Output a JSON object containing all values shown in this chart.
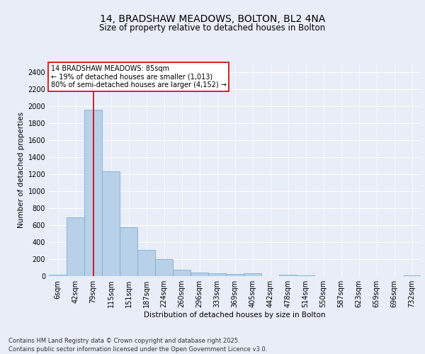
{
  "title_line1": "14, BRADSHAW MEADOWS, BOLTON, BL2 4NA",
  "title_line2": "Size of property relative to detached houses in Bolton",
  "xlabel": "Distribution of detached houses by size in Bolton",
  "ylabel": "Number of detached properties",
  "bar_color": "#b8d0e8",
  "bar_edge_color": "#7aafd4",
  "background_color": "#e8edf8",
  "grid_color": "#ffffff",
  "categories": [
    "6sqm",
    "42sqm",
    "79sqm",
    "115sqm",
    "151sqm",
    "187sqm",
    "224sqm",
    "260sqm",
    "296sqm",
    "333sqm",
    "369sqm",
    "405sqm",
    "442sqm",
    "478sqm",
    "514sqm",
    "550sqm",
    "587sqm",
    "623sqm",
    "659sqm",
    "696sqm",
    "732sqm"
  ],
  "values": [
    15,
    690,
    1960,
    1230,
    575,
    305,
    200,
    75,
    45,
    30,
    25,
    30,
    0,
    15,
    5,
    0,
    0,
    0,
    0,
    0,
    5
  ],
  "vline_x": 2,
  "vline_color": "#cc0000",
  "annotation_text": "14 BRADSHAW MEADOWS: 85sqm\n← 19% of detached houses are smaller (1,013)\n80% of semi-detached houses are larger (4,152) →",
  "annotation_box_color": "#ffffff",
  "annotation_box_edge": "#cc0000",
  "ylim": [
    0,
    2500
  ],
  "yticks": [
    0,
    200,
    400,
    600,
    800,
    1000,
    1200,
    1400,
    1600,
    1800,
    2000,
    2200,
    2400
  ],
  "footnote": "Contains HM Land Registry data © Crown copyright and database right 2025.\nContains public sector information licensed under the Open Government Licence v3.0.",
  "title_fontsize": 10,
  "subtitle_fontsize": 8.5,
  "axis_label_fontsize": 7.5,
  "tick_fontsize": 7,
  "annotation_fontsize": 7,
  "footnote_fontsize": 6
}
